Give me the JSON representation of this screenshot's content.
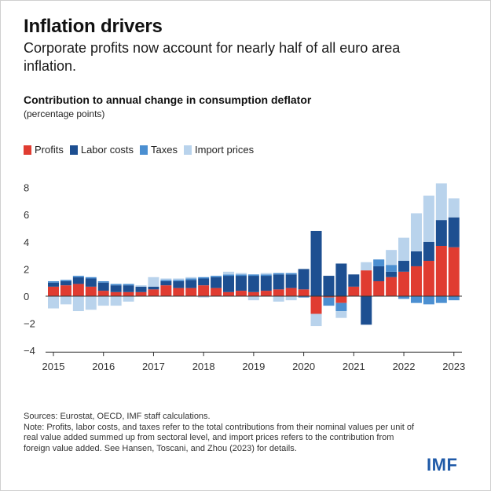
{
  "header": {
    "title": "Inflation drivers",
    "subtitle": "Corporate profits now account for nearly half of all euro area inflation."
  },
  "chart_data": {
    "type": "bar",
    "stacked": true,
    "title": "Contribution to annual change in consumption deflator",
    "unit_label": "(percentage points)",
    "ylim": [
      -4,
      9
    ],
    "yticks": [
      -4,
      -2,
      0,
      2,
      4,
      6,
      8
    ],
    "x_tick_labels": [
      "2015",
      "2016",
      "2017",
      "2018",
      "2019",
      "2020",
      "2021",
      "2022",
      "2023"
    ],
    "x_tick_index": [
      0,
      4,
      8,
      12,
      16,
      20,
      24,
      28,
      32
    ],
    "legend_position": "top-left",
    "grid": false,
    "categories": [
      "2015Q1",
      "2015Q2",
      "2015Q3",
      "2015Q4",
      "2016Q1",
      "2016Q2",
      "2016Q3",
      "2016Q4",
      "2017Q1",
      "2017Q2",
      "2017Q3",
      "2017Q4",
      "2018Q1",
      "2018Q2",
      "2018Q3",
      "2018Q4",
      "2019Q1",
      "2019Q2",
      "2019Q3",
      "2019Q4",
      "2020Q1",
      "2020Q2",
      "2020Q3",
      "2020Q4",
      "2021Q1",
      "2021Q2",
      "2021Q3",
      "2021Q4",
      "2022Q1",
      "2022Q2",
      "2022Q3",
      "2022Q4",
      "2023Q1"
    ],
    "series": [
      {
        "name": "Profits",
        "color": "#e03c31",
        "values": [
          0.7,
          0.8,
          0.9,
          0.7,
          0.4,
          0.3,
          0.3,
          0.3,
          0.5,
          0.8,
          0.6,
          0.6,
          0.8,
          0.6,
          0.3,
          0.4,
          0.3,
          0.4,
          0.5,
          0.6,
          0.5,
          -1.3,
          -0.1,
          -0.5,
          0.7,
          1.9,
          1.1,
          1.4,
          1.8,
          2.2,
          2.6,
          3.7,
          3.6
        ]
      },
      {
        "name": "Labor costs",
        "color": "#1d4f91",
        "values": [
          0.3,
          0.3,
          0.5,
          0.6,
          0.6,
          0.5,
          0.5,
          0.4,
          0.2,
          0.3,
          0.5,
          0.6,
          0.5,
          0.8,
          1.2,
          1.1,
          1.2,
          1.1,
          1.1,
          1.0,
          1.5,
          4.8,
          1.5,
          2.4,
          0.9,
          -2.1,
          1.1,
          0.4,
          0.8,
          1.1,
          1.4,
          1.9,
          2.2
        ]
      },
      {
        "name": "Taxes",
        "color": "#4b8fd1",
        "values": [
          0.1,
          0.1,
          0.1,
          0.1,
          0.1,
          0.1,
          0.1,
          0.0,
          0.0,
          0.1,
          0.1,
          0.1,
          0.1,
          0.1,
          0.1,
          0.1,
          0.1,
          0.1,
          0.1,
          0.1,
          -0.1,
          0.0,
          -0.6,
          -0.6,
          0.0,
          0.0,
          0.5,
          0.5,
          -0.2,
          -0.5,
          -0.6,
          -0.5,
          -0.3
        ]
      },
      {
        "name": "Import prices",
        "color": "#b9d3ec",
        "values": [
          -0.9,
          -0.6,
          -1.1,
          -1.0,
          -0.7,
          -0.7,
          -0.4,
          0.1,
          0.7,
          0.1,
          0.1,
          0.1,
          -0.1,
          0.0,
          0.2,
          0.1,
          -0.3,
          0.1,
          -0.4,
          -0.3,
          0.0,
          -0.9,
          0.0,
          -0.5,
          0.0,
          0.6,
          0.0,
          1.1,
          1.7,
          2.8,
          3.4,
          2.7,
          1.4
        ]
      }
    ]
  },
  "footer": {
    "sources": "Sources: Eurostat, OECD, IMF staff calculations.",
    "note": "Note: Profits, labor costs, and taxes refer to the total contributions from their nominal values per unit of real value added summed up from sectoral level, and import prices refers to the contribution from foreign value added. See Hansen, Toscani, and Zhou (2023) for details.",
    "logo": "IMF"
  }
}
